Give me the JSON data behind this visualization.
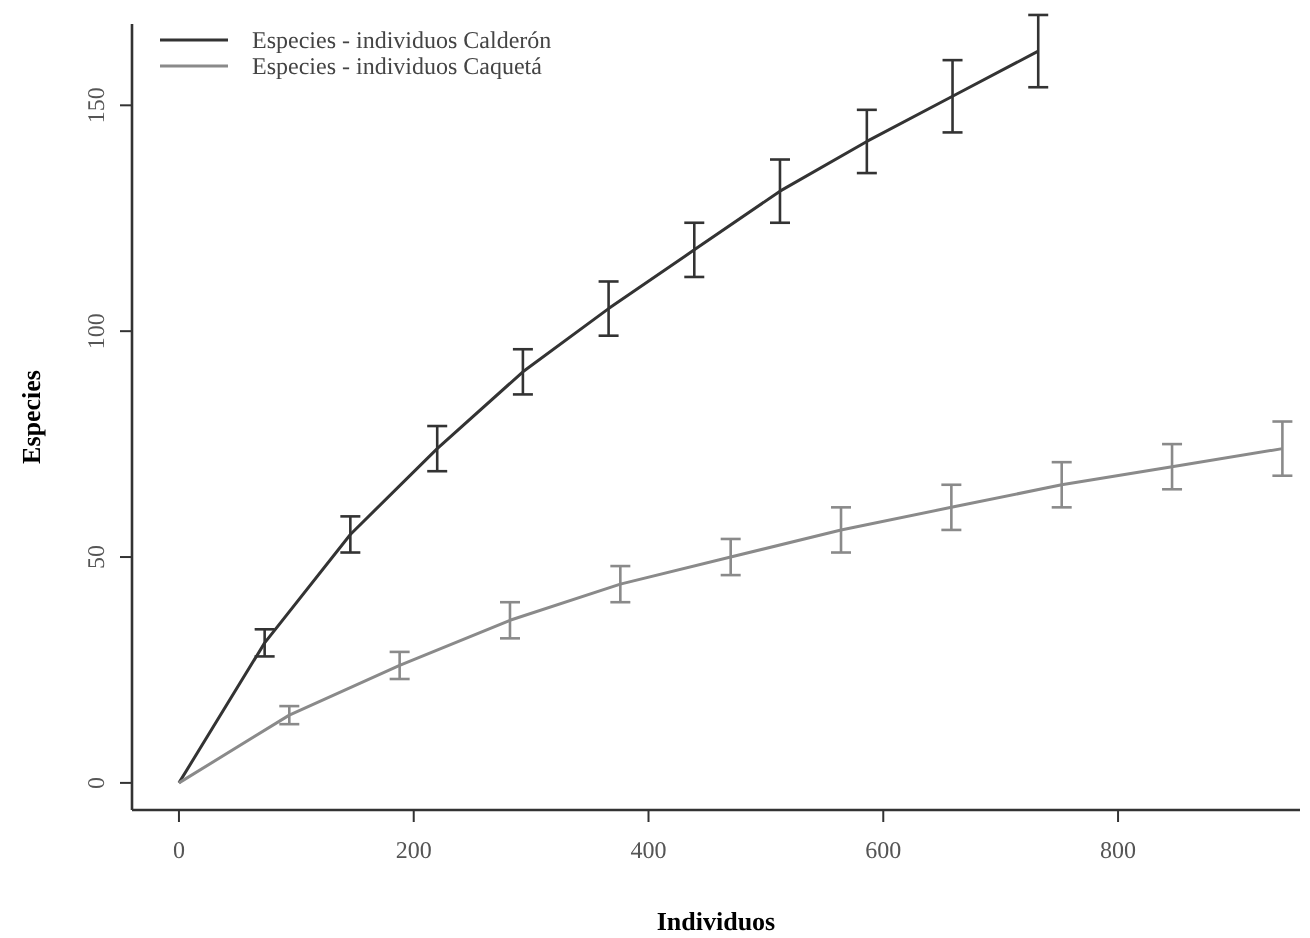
{
  "chart_data": {
    "type": "line",
    "xlabel": "Individuos",
    "ylabel": "Especies",
    "xlim": [
      -40,
      955
    ],
    "ylim": [
      -6,
      168
    ],
    "xticks": [
      0,
      200,
      400,
      600,
      800
    ],
    "yticks": [
      0,
      50,
      100,
      150
    ],
    "grid": false,
    "legend": "top left",
    "marker": "none",
    "line_style": "solid",
    "series": [
      {
        "name": "Especies - individuos Calderón",
        "color": "#333333",
        "x": [
          0,
          73,
          146,
          220,
          293,
          366,
          439,
          512,
          586,
          659,
          732
        ],
        "values": [
          0,
          31,
          55,
          74,
          91,
          105,
          118,
          131,
          142,
          152,
          162
        ],
        "errors": [
          null,
          3,
          4,
          5,
          5,
          6,
          6,
          7,
          7,
          8,
          8
        ]
      },
      {
        "name": "Especies - individuos Caquetá",
        "color": "#8a8a8a",
        "x": [
          0,
          94,
          188,
          282,
          376,
          470,
          564,
          658,
          752,
          846,
          940
        ],
        "values": [
          0,
          15,
          26,
          36,
          44,
          50,
          56,
          61,
          66,
          70,
          74
        ],
        "errors": [
          null,
          2,
          3,
          4,
          4,
          4,
          5,
          5,
          5,
          5,
          6
        ]
      }
    ]
  }
}
